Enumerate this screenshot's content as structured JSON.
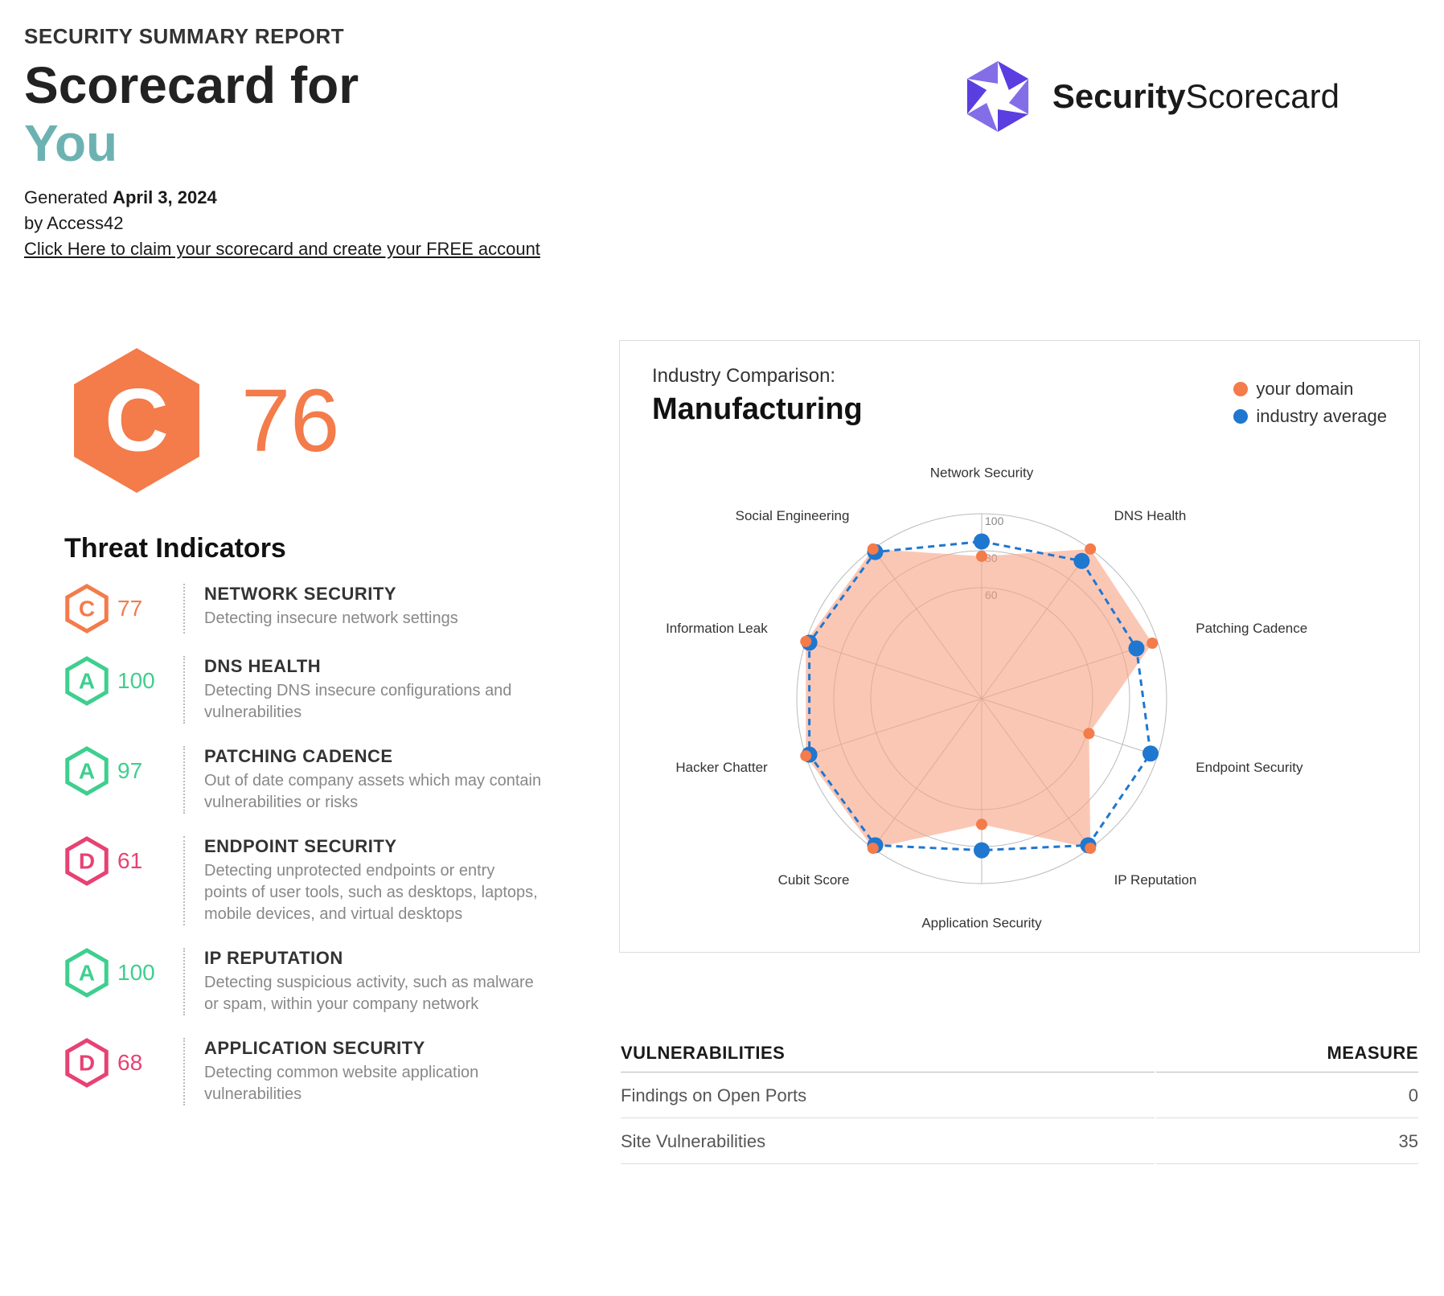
{
  "header": {
    "subtitle": "SECURITY SUMMARY REPORT",
    "title_prefix": "Scorecard for",
    "title_subject": "You",
    "generated_label": "Generated ",
    "generated_date": "April 3, 2024",
    "by_line": "by Access42",
    "claim_link": "Click Here to claim your scorecard and create your FREE account",
    "brand_word1": "Security",
    "brand_word2": "Scorecard",
    "logo_color": "#5a3ee0"
  },
  "main_score": {
    "grade": "C",
    "score": "76",
    "color": "#f47b4a"
  },
  "threat_title": "Threat Indicators",
  "grade_colors": {
    "A": "#3ecf8e",
    "B": "#a8d66b",
    "C": "#f47b4a",
    "D": "#e74273",
    "F": "#b0224a"
  },
  "indicators": [
    {
      "grade": "C",
      "score": "77",
      "name": "NETWORK SECURITY",
      "desc": "Detecting insecure network settings"
    },
    {
      "grade": "A",
      "score": "100",
      "name": "DNS HEALTH",
      "desc": "Detecting DNS insecure configurations and vulnerabilities"
    },
    {
      "grade": "A",
      "score": "97",
      "name": "PATCHING CADENCE",
      "desc": "Out of date company assets which may contain vulnerabilities or risks"
    },
    {
      "grade": "D",
      "score": "61",
      "name": "ENDPOINT SECURITY",
      "desc": "Detecting unprotected endpoints or entry points of user tools, such as desktops, laptops, mobile devices, and virtual desktops"
    },
    {
      "grade": "A",
      "score": "100",
      "name": "IP REPUTATION",
      "desc": "Detecting suspicious activity, such as malware or spam, within your company network"
    },
    {
      "grade": "D",
      "score": "68",
      "name": "APPLICATION SECURITY",
      "desc": "Detecting common website application vulnerabilities"
    }
  ],
  "radar": {
    "title_sm": "Industry Comparison:",
    "title_lg": "Manufacturing",
    "legend": {
      "your_label": "your domain",
      "your_color": "#f47b4a",
      "avg_label": "industry average",
      "avg_color": "#1f77d0"
    },
    "axes": [
      "Network Security",
      "DNS Health",
      "Patching Cadence",
      "Endpoint Security",
      "IP Reputation",
      "Application Security",
      "Cubit Score",
      "Hacker Chatter",
      "Information Leak",
      "Social Engineering"
    ],
    "rings": [
      60,
      80,
      100
    ],
    "ring_labels": [
      "60",
      "80",
      "100"
    ],
    "your_values": [
      77,
      100,
      97,
      61,
      100,
      68,
      100,
      100,
      100,
      100
    ],
    "avg_values": [
      85,
      92,
      88,
      96,
      98,
      82,
      98,
      98,
      98,
      98
    ],
    "fill_color": "#f9a184",
    "fill_opacity": 0.6,
    "line_color": "#1f77d0",
    "grid_color": "#bbbbbb",
    "label_fontsize": 17
  },
  "vuln_table": {
    "col1": "VULNERABILITIES",
    "col2": "MEASURE",
    "rows": [
      {
        "name": "Findings on Open Ports",
        "value": "0"
      },
      {
        "name": "Site Vulnerabilities",
        "value": "35"
      }
    ]
  }
}
